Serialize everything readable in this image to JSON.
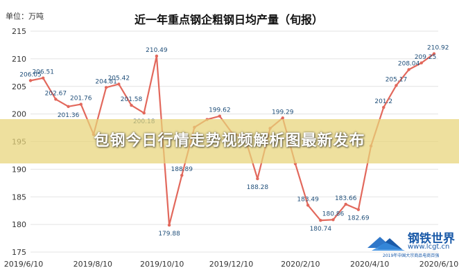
{
  "chart_data": {
    "type": "line",
    "title": "近一年重点钢企粗钢日均产量（旬报）",
    "unit_label": "单位：万吨",
    "ylim": [
      175,
      215
    ],
    "y_ticks": [
      "175",
      "180",
      "185",
      "190",
      "195",
      "200",
      "205",
      "210",
      "215"
    ],
    "x_tick_labels": [
      "2019/6/10",
      "2019/8/10",
      "2019/10/10",
      "2019/12/10",
      "2020/2/10",
      "2020/4/10",
      "2020/6/10"
    ],
    "grid": true,
    "legend": "none",
    "colors": {
      "line": "#e2685c",
      "marker": "#e2685c",
      "label": "#1f4e79",
      "grid": "#e3e3e3"
    },
    "series": [
      {
        "values": [
          206.05,
          206.51,
          202.67,
          201.36,
          201.76,
          196.3,
          204.81,
          205.42,
          201.58,
          200.18,
          210.49,
          179.88,
          188.89,
          197.6,
          199.0,
          199.62,
          196.5,
          195.8,
          188.28,
          197.4,
          199.29,
          191.0,
          183.49,
          180.74,
          180.86,
          183.66,
          182.69,
          194.2,
          201.2,
          205.17,
          208.04,
          209.25,
          210.92
        ],
        "labels": [
          "206.05",
          "206.51",
          "202.67",
          "201.36",
          "201.76",
          "",
          "204.81",
          "205.42",
          "201.58",
          "200.18",
          "210.49",
          "179.88",
          "188.89",
          "",
          "",
          "199.62",
          "",
          "",
          "188.28",
          "",
          "199.29",
          "",
          "183.49",
          "180.74",
          "180.86",
          "183.66",
          "182.69",
          "",
          "201.2",
          "205.17",
          "208.04",
          "209.25",
          "210.92"
        ]
      }
    ]
  },
  "banner": {
    "text": "包钢今日行情走势视频解析图最新发布"
  },
  "watermark": {
    "name": "钢铁世界",
    "url": "www.lcgt.cn",
    "award": "2019年中国大宗商品电商百强"
  }
}
